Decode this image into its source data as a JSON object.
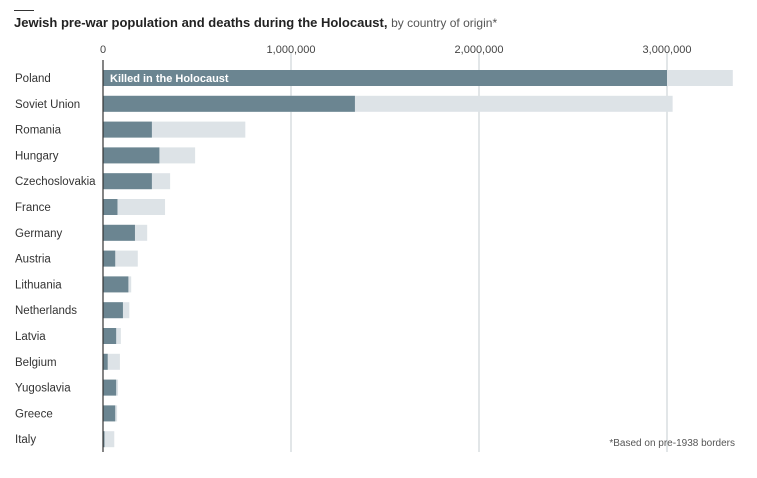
{
  "title": "Jewish pre-war population and deaths during the Holocaust,",
  "subtitle": "by country of origin*",
  "note": "*Based on pre-1938 borders",
  "colors": {
    "killed": "#6b8591",
    "population": "#dde3e7",
    "grid": "#d9dde0",
    "axis": "#333333"
  },
  "chart_data": {
    "type": "bar",
    "orientation": "horizontal",
    "stacked": "overlay",
    "annotation": "Killed in the Holocaust",
    "xlim": [
      0,
      3400000
    ],
    "xticks": [
      0,
      1000000,
      2000000,
      3000000
    ],
    "xtick_labels": [
      "0",
      "1,000,000",
      "2,000,000",
      "3,000,000"
    ],
    "categories": [
      "Poland",
      "Soviet Union",
      "Romania",
      "Hungary",
      "Czechoslovakia",
      "France",
      "Germany",
      "Austria",
      "Lithuania",
      "Netherlands",
      "Latvia",
      "Belgium",
      "Yugoslavia",
      "Greece",
      "Italy"
    ],
    "series": [
      {
        "values": [
          3350000,
          3030000,
          757000,
          490000,
          357000,
          330000,
          235000,
          185000,
          150000,
          140000,
          95000,
          90000,
          80000,
          75000,
          60000
        ]
      },
      {
        "values": [
          3000000,
          1340000,
          260000,
          300000,
          260000,
          77000,
          170000,
          65000,
          135000,
          106000,
          70000,
          25000,
          70000,
          65000,
          8000
        ]
      }
    ],
    "grid": true
  }
}
